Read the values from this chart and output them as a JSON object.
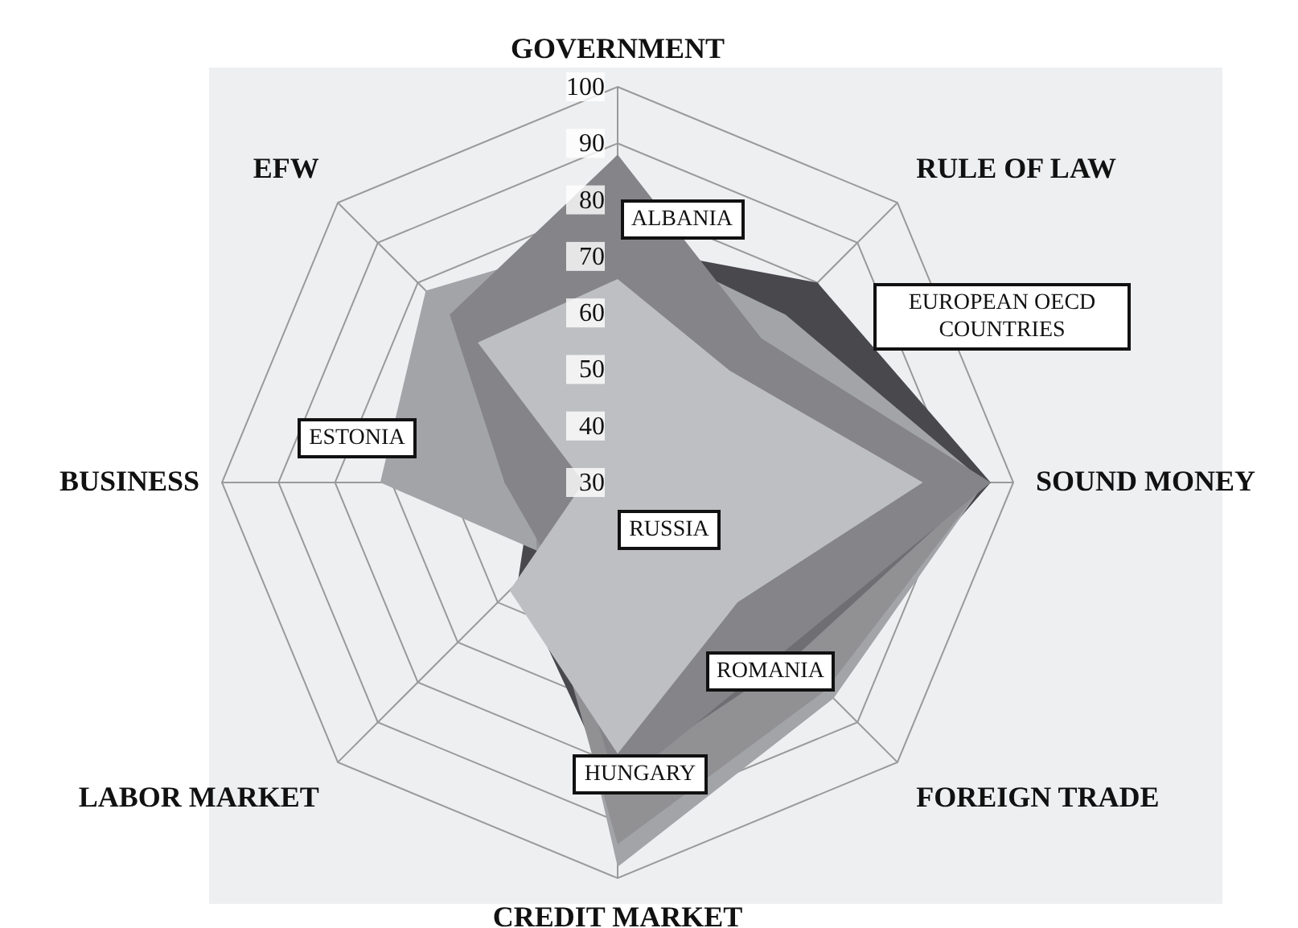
{
  "chart_data": {
    "type": "radar",
    "categories": [
      "GOVERNMENT",
      "RULE OF LAW",
      "SOUND MONEY",
      "FOREIGN TRADE",
      "CREDIT MARKET",
      "LABOR MARKET",
      "BUSINESS",
      "EFW"
    ],
    "ylim": [
      30,
      100
    ],
    "yticks": [
      30,
      40,
      50,
      60,
      70,
      80,
      90,
      100
    ],
    "legend": false,
    "grid": true,
    "series": [
      {
        "name": "EUROPEAN OECD COUNTRIES",
        "color": "#48484d",
        "values": [
          72,
          80,
          96,
          80,
          86,
          55,
          45,
          68
        ]
      },
      {
        "name": "ESTONIA",
        "color": "#a3a4a7",
        "values": [
          74,
          72,
          95,
          84,
          98,
          48,
          72,
          78
        ]
      },
      {
        "name": "HUNGARY",
        "color": "#919194",
        "values": [
          70,
          66,
          95,
          82,
          94,
          50,
          45,
          66
        ]
      },
      {
        "name": "ROMANIA",
        "color": "#6f6f73",
        "values": [
          62,
          60,
          95,
          74,
          82,
          45,
          50,
          60
        ]
      },
      {
        "name": "ALBANIA",
        "color": "#858488",
        "values": [
          88,
          66,
          96,
          72,
          84,
          48,
          50,
          72
        ]
      },
      {
        "name": "RUSSIA",
        "color": "#bebfc2",
        "values": [
          66,
          58,
          84,
          60,
          78,
          57,
          36,
          65
        ]
      }
    ]
  }
}
